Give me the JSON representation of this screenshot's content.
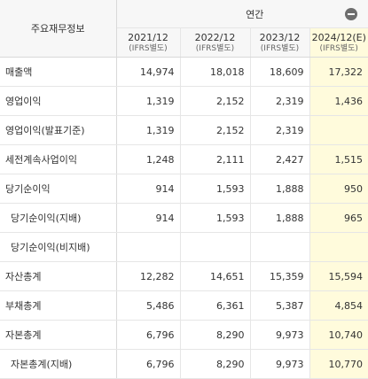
{
  "header": {
    "label": "주요재무정보",
    "period": "연간",
    "collapse_icon": "minus-circle-icon",
    "years": [
      {
        "year": "2021/12",
        "sub": "(IFRS별도)"
      },
      {
        "year": "2022/12",
        "sub": "(IFRS별도)"
      },
      {
        "year": "2023/12",
        "sub": "(IFRS별도)"
      },
      {
        "year": "2024/12(E)",
        "sub": "(IFRS별도)"
      }
    ]
  },
  "rows": [
    {
      "label": "매출액",
      "values": [
        "14,974",
        "18,018",
        "18,609",
        "17,322"
      ]
    },
    {
      "label": "영업이익",
      "values": [
        "1,319",
        "2,152",
        "2,319",
        "1,436"
      ]
    },
    {
      "label": "영업이익(발표기준)",
      "values": [
        "1,319",
        "2,152",
        "2,319",
        ""
      ]
    },
    {
      "label": "세전계속사업이익",
      "values": [
        "1,248",
        "2,111",
        "2,427",
        "1,515"
      ]
    },
    {
      "label": "당기순이익",
      "values": [
        "914",
        "1,593",
        "1,888",
        "950"
      ]
    },
    {
      "label": "당기순이익(지배)",
      "values": [
        "914",
        "1,593",
        "1,888",
        "965"
      ]
    },
    {
      "label": "당기순이익(비지배)",
      "values": [
        "",
        "",
        "",
        ""
      ]
    },
    {
      "label": "자산총계",
      "values": [
        "12,282",
        "14,651",
        "15,359",
        "15,594"
      ]
    },
    {
      "label": "부채총계",
      "values": [
        "5,486",
        "6,361",
        "5,387",
        "4,854"
      ]
    },
    {
      "label": "자본총계",
      "values": [
        "6,796",
        "8,290",
        "9,973",
        "10,740"
      ]
    },
    {
      "label": "자본총계(지배)",
      "values": [
        "6,796",
        "8,290",
        "9,973",
        "10,770"
      ]
    }
  ],
  "colors": {
    "estimate_bg": "#fffbdc",
    "header_bg": "#f7f7f7"
  }
}
